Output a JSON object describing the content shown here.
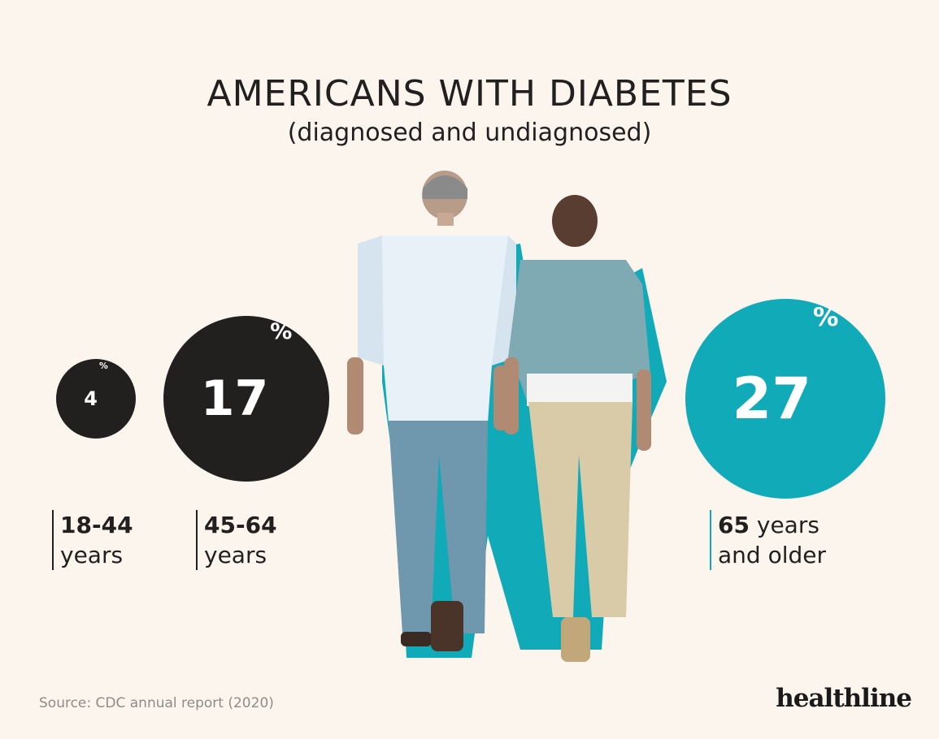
{
  "title": "AMERICANS WITH DIABETES",
  "subtitle": "(diagnosed and undiagnosed)",
  "chart_data": {
    "type": "bubble",
    "series": [
      {
        "value": 4,
        "value_label": "4",
        "unit": "%",
        "label_bold": "18-44",
        "label_rest": "years",
        "color": "#221f1f"
      },
      {
        "value": 17,
        "value_label": "17",
        "unit": "%",
        "label_bold": "45-64",
        "label_rest": "years",
        "color": "#221f1f"
      },
      {
        "value": 27,
        "value_label": "27",
        "unit": "%",
        "label_bold": "65",
        "label_rest": " years",
        "label_line2": "and older",
        "color": "#10aab8"
      }
    ]
  },
  "source": "Source: CDC annual report (2020)",
  "brand": "healthline",
  "colors": {
    "background": "#fbf5ee",
    "dark": "#221f1f",
    "accent": "#10aab8"
  }
}
